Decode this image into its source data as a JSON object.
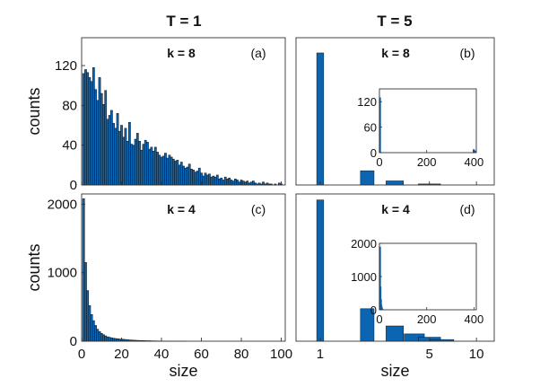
{
  "chart_data": [
    {
      "id": "a",
      "type": "bar",
      "panel_label": "(a)",
      "annotation": "k = 8",
      "column_title": "T = 1",
      "ylabel": "counts",
      "xlabel": "",
      "xlim": [
        0,
        102
      ],
      "ylim": [
        0,
        148
      ],
      "yticks": [
        0,
        40,
        80,
        120
      ],
      "xticks": [
        0,
        20,
        40,
        60,
        80,
        100
      ],
      "show_xtick_labels": false,
      "x_start": 1,
      "values": [
        112,
        116,
        113,
        108,
        104,
        118,
        96,
        85,
        108,
        92,
        81,
        95,
        66,
        70,
        75,
        62,
        57,
        72,
        54,
        60,
        48,
        57,
        44,
        63,
        41,
        40,
        46,
        52,
        44,
        35,
        41,
        45,
        43,
        36,
        38,
        34,
        38,
        33,
        30,
        28,
        29,
        32,
        27,
        30,
        28,
        26,
        24,
        25,
        20,
        23,
        19,
        17,
        18,
        21,
        16,
        15,
        13,
        14,
        17,
        12,
        9,
        12,
        10,
        11,
        8,
        9,
        8,
        10,
        6,
        7,
        5,
        8,
        6,
        7,
        5,
        4,
        6,
        5,
        3,
        5,
        4,
        3,
        4,
        2,
        3,
        4,
        2,
        1,
        2,
        1,
        3,
        1,
        2,
        1,
        1,
        0,
        1,
        0,
        2,
        1
      ]
    },
    {
      "id": "b",
      "type": "bar",
      "panel_label": "(b)",
      "annotation": "k = 8",
      "column_title": "T = 5",
      "ylabel": "",
      "xlabel": "",
      "categories": [
        1,
        2,
        3,
        4,
        5
      ],
      "values": [
        130,
        14,
        4,
        0,
        1
      ],
      "ylim": [
        0,
        145
      ],
      "xticks": [
        1,
        5,
        10
      ],
      "show_xtick_labels": false,
      "inset": {
        "type": "bar",
        "xlim": [
          0,
          410
        ],
        "ylim": [
          0,
          150
        ],
        "yticks": [
          0,
          60,
          120
        ],
        "xticks": [
          0,
          200,
          400
        ],
        "bars": [
          {
            "x": 1,
            "value": 130
          },
          {
            "x": 398,
            "value": 8
          },
          {
            "x": 403,
            "value": 5
          }
        ]
      }
    },
    {
      "id": "c",
      "type": "bar",
      "panel_label": "(c)",
      "annotation": "k = 4",
      "ylabel": "counts",
      "xlabel": "size",
      "xlim": [
        0,
        102
      ],
      "ylim": [
        0,
        2150
      ],
      "yticks": [
        0,
        1000,
        2000
      ],
      "xticks": [
        0,
        20,
        40,
        60,
        80,
        100
      ],
      "show_xtick_labels": true,
      "x_start": 1,
      "values": [
        2080,
        1150,
        740,
        520,
        390,
        300,
        230,
        175,
        140,
        115,
        95,
        78,
        65,
        58,
        50,
        44,
        40,
        36,
        32,
        30,
        28,
        25,
        22,
        19,
        17,
        15,
        14,
        12,
        11,
        10,
        9,
        8,
        7,
        7,
        6,
        5,
        5,
        4,
        4,
        3,
        3,
        3,
        2,
        2,
        2,
        2,
        1,
        1,
        1,
        1,
        1,
        1
      ]
    },
    {
      "id": "d",
      "type": "bar",
      "panel_label": "(d)",
      "annotation": "k = 4",
      "ylabel": "",
      "xlabel": "size",
      "categories": [
        1,
        2,
        3,
        4,
        5,
        6
      ],
      "values": [
        2130,
        490,
        230,
        110,
        60,
        25
      ],
      "ylim": [
        0,
        2220
      ],
      "xticks": [
        1,
        5,
        10
      ],
      "show_xtick_labels": true,
      "inset": {
        "type": "bar",
        "xlim": [
          0,
          410
        ],
        "ylim": [
          0,
          2000
        ],
        "yticks": [
          0,
          1000,
          2000
        ],
        "xticks": [
          0,
          200,
          400
        ],
        "bars": [
          {
            "x": 1,
            "value": 1900
          },
          {
            "x": 3,
            "value": 700
          },
          {
            "x": 5,
            "value": 320
          },
          {
            "x": 7,
            "value": 150
          },
          {
            "x": 9,
            "value": 70
          },
          {
            "x": 11,
            "value": 30
          }
        ]
      }
    }
  ]
}
